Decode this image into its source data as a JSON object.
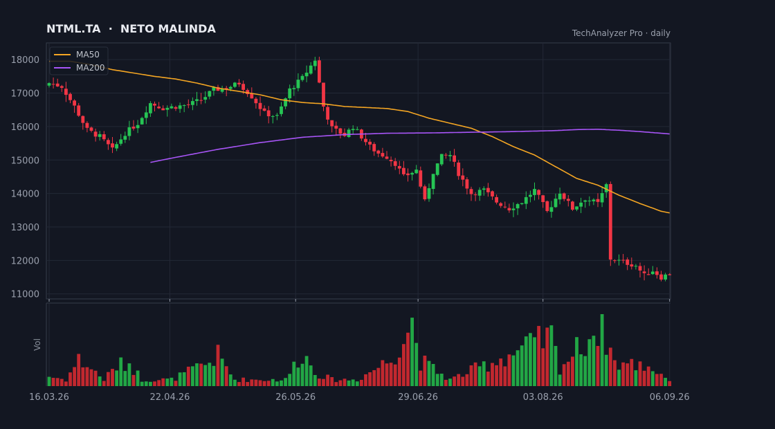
{
  "header": {
    "title": "NTML.TA  ·  NETO MALINDA",
    "source": "TechAnalyzer Pro · daily"
  },
  "colors": {
    "background": "#131722",
    "up": "#26c454",
    "down": "#f23645",
    "ma50": "#f5a623",
    "ma200": "#a855f7",
    "grid": "#232836",
    "axis": "#363c4a"
  },
  "chart_data": {
    "type": "candlestick",
    "title": "NTML.TA  ·  NETO MALINDA",
    "x_ticks": [
      "16.03.26",
      "22.04.26",
      "26.05.26",
      "29.06.26",
      "03.08.26",
      "06.09.26"
    ],
    "y_ticks": [
      11000,
      12000,
      13000,
      14000,
      15000,
      16000,
      17000,
      18000
    ],
    "ylim": [
      10850,
      18500
    ],
    "volume_label": "Vol",
    "legend": {
      "position": "top-left",
      "entries": [
        "MA50",
        "MA200"
      ]
    },
    "grid": true,
    "close_path": [
      [
        0,
        17300
      ],
      [
        3,
        17200
      ],
      [
        6,
        16600
      ],
      [
        9,
        15900
      ],
      [
        12,
        15700
      ],
      [
        15,
        15300
      ],
      [
        18,
        15800
      ],
      [
        21,
        16100
      ],
      [
        24,
        16700
      ],
      [
        27,
        16550
      ],
      [
        30,
        16600
      ],
      [
        33,
        16650
      ],
      [
        36,
        16800
      ],
      [
        39,
        17100
      ],
      [
        42,
        17150
      ],
      [
        45,
        17300
      ],
      [
        48,
        16900
      ],
      [
        51,
        16400
      ],
      [
        54,
        16300
      ],
      [
        57,
        17100
      ],
      [
        60,
        17450
      ],
      [
        63,
        18000
      ],
      [
        65,
        16600
      ],
      [
        67,
        15950
      ],
      [
        70,
        15750
      ],
      [
        72,
        16000
      ],
      [
        74,
        15700
      ],
      [
        76,
        15400
      ],
      [
        78,
        15200
      ],
      [
        80,
        15100
      ],
      [
        82,
        14900
      ],
      [
        84,
        14500
      ],
      [
        87,
        14700
      ],
      [
        89,
        13750
      ],
      [
        91,
        14650
      ],
      [
        93,
        15100
      ],
      [
        95,
        15150
      ],
      [
        97,
        14600
      ],
      [
        100,
        14000
      ],
      [
        103,
        14100
      ],
      [
        106,
        13750
      ],
      [
        109,
        13550
      ],
      [
        112,
        13750
      ],
      [
        115,
        14100
      ],
      [
        118,
        13450
      ],
      [
        121,
        14050
      ],
      [
        124,
        13550
      ],
      [
        127,
        13850
      ],
      [
        130,
        13700
      ],
      [
        132,
        14250
      ],
      [
        133,
        12050
      ],
      [
        136,
        11950
      ],
      [
        139,
        11850
      ],
      [
        141,
        11550
      ],
      [
        143,
        11700
      ],
      [
        145,
        11500
      ],
      [
        147,
        11600
      ]
    ],
    "volume_path": [
      [
        0,
        0.15
      ],
      [
        4,
        0.1
      ],
      [
        7,
        0.41
      ],
      [
        10,
        0.27
      ],
      [
        13,
        0.1
      ],
      [
        16,
        0.31
      ],
      [
        19,
        0.36
      ],
      [
        22,
        0.1
      ],
      [
        29,
        0.1
      ],
      [
        38,
        0.37
      ],
      [
        40,
        0.47
      ],
      [
        44,
        0.1
      ],
      [
        56,
        0.1
      ],
      [
        60,
        0.53
      ],
      [
        63,
        0.22
      ],
      [
        67,
        0.1
      ],
      [
        73,
        0.1
      ],
      [
        81,
        0.42
      ],
      [
        86,
        1.0
      ],
      [
        88,
        0.39
      ],
      [
        95,
        0.1
      ],
      [
        119,
        0.76
      ],
      [
        121,
        0.29
      ],
      [
        131,
        0.97
      ],
      [
        134,
        0.36
      ],
      [
        142,
        0.31
      ],
      [
        147,
        0.1
      ]
    ],
    "ma50_path": [
      [
        0,
        17950
      ],
      [
        5,
        17950
      ],
      [
        10,
        17850
      ],
      [
        15,
        17700
      ],
      [
        20,
        17600
      ],
      [
        25,
        17500
      ],
      [
        30,
        17420
      ],
      [
        35,
        17300
      ],
      [
        40,
        17150
      ],
      [
        45,
        17050
      ],
      [
        50,
        16950
      ],
      [
        55,
        16800
      ],
      [
        60,
        16720
      ],
      [
        65,
        16680
      ],
      [
        70,
        16600
      ],
      [
        75,
        16570
      ],
      [
        80,
        16540
      ],
      [
        85,
        16450
      ],
      [
        90,
        16250
      ],
      [
        95,
        16100
      ],
      [
        100,
        15950
      ],
      [
        105,
        15700
      ],
      [
        110,
        15400
      ],
      [
        115,
        15150
      ],
      [
        120,
        14800
      ],
      [
        125,
        14450
      ],
      [
        130,
        14250
      ],
      [
        135,
        13950
      ],
      [
        140,
        13700
      ],
      [
        145,
        13470
      ],
      [
        147,
        13420
      ]
    ],
    "ma200_path": [
      [
        24,
        14930
      ],
      [
        30,
        15080
      ],
      [
        40,
        15320
      ],
      [
        50,
        15520
      ],
      [
        60,
        15680
      ],
      [
        70,
        15760
      ],
      [
        80,
        15800
      ],
      [
        90,
        15810
      ],
      [
        100,
        15830
      ],
      [
        110,
        15850
      ],
      [
        120,
        15880
      ],
      [
        125,
        15910
      ],
      [
        130,
        15920
      ],
      [
        135,
        15890
      ],
      [
        140,
        15850
      ],
      [
        147,
        15780
      ]
    ]
  }
}
